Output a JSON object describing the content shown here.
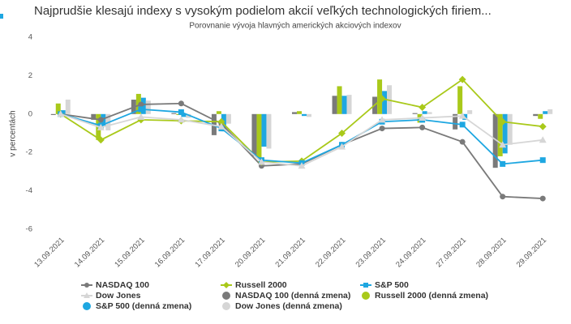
{
  "chart_data": {
    "type": "combo",
    "title": "Najprudšie klesajú indexy s vysokým podielom akcií veľkých technologických firiem...",
    "subtitle": "Porovnanie vývoja hlavných amerických akciových indexov",
    "y_label": "v percentách",
    "categories": [
      "13.09.2021",
      "14.09.2021",
      "15.09.2021",
      "16.09.2021",
      "17.09.2021",
      "20.09.2021",
      "21.09.2021",
      "22.09.2021",
      "23.09.2021",
      "24.09.2021",
      "27.09.2021",
      "28.09.2021",
      "29.09.2021"
    ],
    "ylim": [
      -6,
      4
    ],
    "yticks": [
      -6,
      -4,
      -2,
      0,
      2,
      4
    ],
    "grid": false,
    "series": [
      {
        "name": "NASDAQ 100",
        "type": "line",
        "marker": "circle",
        "color": "#7a7a7a",
        "values": [
          0,
          -0.3,
          0.5,
          0.55,
          -0.5,
          -2.7,
          -2.6,
          -1.6,
          -0.75,
          -0.7,
          -1.45,
          -4.3,
          -4.4
        ]
      },
      {
        "name": "Russell 2000",
        "type": "line",
        "marker": "diamond",
        "color": "#a9c91a",
        "values": [
          0,
          -1.35,
          -0.3,
          -0.35,
          -0.4,
          -2.5,
          -2.45,
          -1.0,
          0.8,
          0.35,
          1.8,
          -0.4,
          -0.65
        ]
      },
      {
        "name": "S&P 500",
        "type": "line",
        "marker": "square",
        "color": "#1ea7e1",
        "values": [
          0,
          -0.6,
          0.25,
          0.1,
          -0.75,
          -2.4,
          -2.55,
          -1.6,
          -0.4,
          -0.3,
          -0.55,
          -2.6,
          -2.4
        ]
      },
      {
        "name": "Dow Jones",
        "type": "line",
        "marker": "triangle",
        "color": "#d6d6d6",
        "values": [
          0,
          -0.7,
          -0.15,
          -0.3,
          -0.65,
          -2.5,
          -2.7,
          -1.7,
          -0.3,
          -0.2,
          -0.1,
          -1.6,
          -1.35
        ]
      },
      {
        "name": "NASDAQ 100 (denná zmena)",
        "type": "bar",
        "color": "#7a7a7a",
        "values": [
          -0.05,
          -0.3,
          0.75,
          0.05,
          -1.1,
          -2.2,
          0.1,
          0.95,
          0.9,
          0.05,
          -0.8,
          -2.8,
          -0.1
        ]
      },
      {
        "name": "Russell 2000 (denná zmena)",
        "type": "bar",
        "color": "#a9c91a",
        "values": [
          0.55,
          -1.35,
          1.05,
          -0.05,
          0.15,
          -2.3,
          0.15,
          1.45,
          1.8,
          -0.45,
          1.45,
          -2.2,
          -0.25
        ]
      },
      {
        "name": "S&P 500 (denná zmena)",
        "type": "bar",
        "color": "#1ea7e1",
        "values": [
          0.2,
          -0.6,
          0.85,
          -0.15,
          -0.9,
          -1.7,
          -0.1,
          0.95,
          1.2,
          0.15,
          -0.3,
          -2.05,
          0.15
        ]
      },
      {
        "name": "Dow Jones (denná zmena)",
        "type": "bar",
        "color": "#d6d6d6",
        "values": [
          0.75,
          -0.85,
          0.7,
          -0.2,
          -0.5,
          -1.8,
          -0.15,
          1.0,
          1.5,
          0.1,
          0.2,
          -1.6,
          0.25
        ]
      }
    ]
  }
}
